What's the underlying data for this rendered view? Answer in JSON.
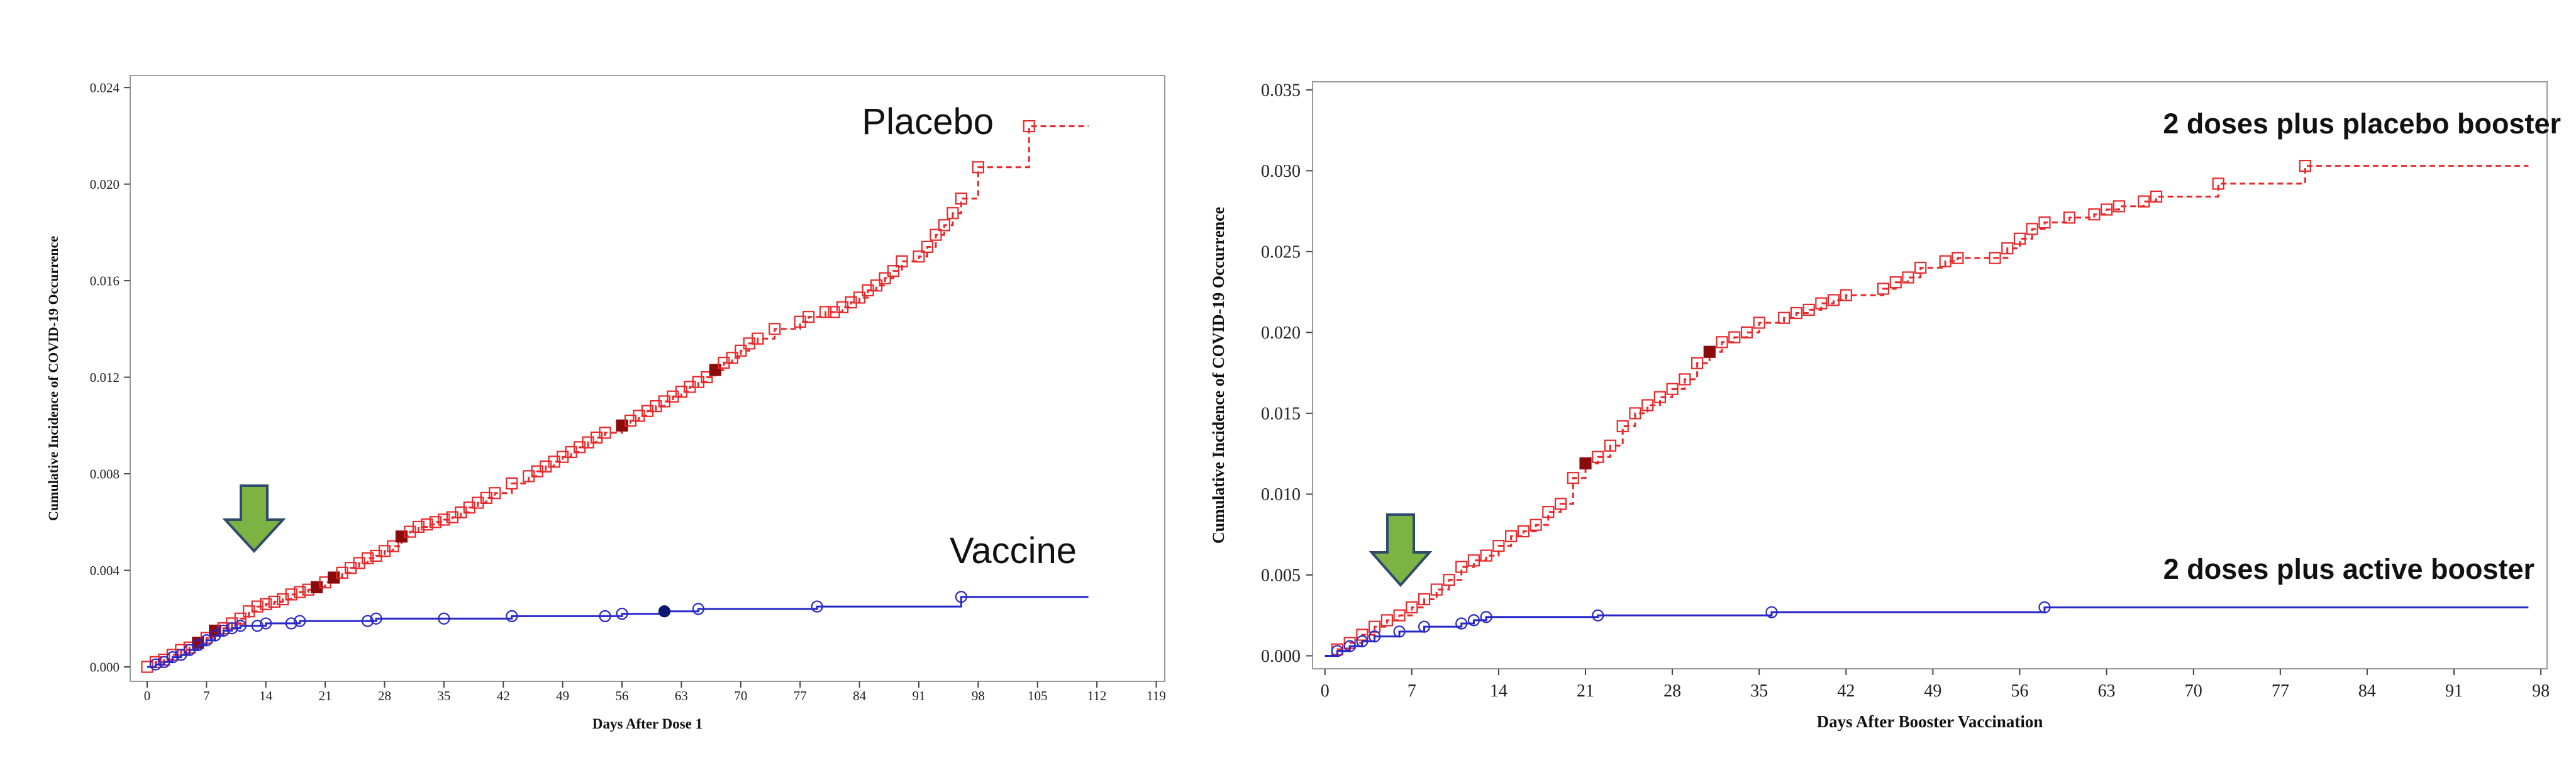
{
  "colors": {
    "placebo": "#e8292b",
    "placebo_filled": "#8b0a0a",
    "vaccine": "#2727c9",
    "vaccine_filled": "#0d1670",
    "arrow_fill": "#7cb342",
    "arrow_stroke": "#2f4a6d",
    "axis": "#444444"
  },
  "chart_data": [
    {
      "type": "line",
      "title": "",
      "xlabel": "Days After Dose 1",
      "ylabel": "Cumulative Incidence of COVID-19 Occurrence",
      "xlim": [
        -2,
        120
      ],
      "ylim": [
        -0.0006,
        0.0245
      ],
      "xticks": [
        0,
        7,
        14,
        21,
        28,
        35,
        42,
        49,
        56,
        63,
        70,
        77,
        84,
        91,
        98,
        105,
        112,
        119
      ],
      "yticks": [
        0.0,
        0.004,
        0.008,
        0.012,
        0.016,
        0.02,
        0.024
      ],
      "ytick_labels": [
        "0.000",
        "0.004",
        "0.008",
        "0.012",
        "0.016",
        "0.020",
        "0.024"
      ],
      "arrow_at_x": 13,
      "annotations": [
        "Placebo",
        "Vaccine"
      ],
      "series": [
        {
          "name": "Placebo",
          "style": "dashed",
          "marker": "square",
          "end_x": 111,
          "filled": [
            [
              6,
              0.001
            ],
            [
              8,
              0.0015
            ],
            [
              20,
              0.0033
            ],
            [
              22,
              0.0037
            ],
            [
              30,
              0.0054
            ],
            [
              56,
              0.01
            ],
            [
              67,
              0.0123
            ]
          ],
          "points": [
            [
              0,
              0.0
            ],
            [
              1,
              0.0002
            ],
            [
              2,
              0.0003
            ],
            [
              3,
              0.0005
            ],
            [
              4,
              0.0007
            ],
            [
              5,
              0.0008
            ],
            [
              6,
              0.001
            ],
            [
              7,
              0.0012
            ],
            [
              8,
              0.0015
            ],
            [
              9,
              0.0016
            ],
            [
              10,
              0.0018
            ],
            [
              11,
              0.002
            ],
            [
              12,
              0.0023
            ],
            [
              13,
              0.0025
            ],
            [
              14,
              0.0026
            ],
            [
              15,
              0.0027
            ],
            [
              16,
              0.0028
            ],
            [
              17,
              0.003
            ],
            [
              18,
              0.0031
            ],
            [
              19,
              0.0032
            ],
            [
              20,
              0.0033
            ],
            [
              21,
              0.0035
            ],
            [
              22,
              0.0037
            ],
            [
              23,
              0.0039
            ],
            [
              24,
              0.0041
            ],
            [
              25,
              0.0043
            ],
            [
              26,
              0.0045
            ],
            [
              27,
              0.0046
            ],
            [
              28,
              0.0048
            ],
            [
              29,
              0.005
            ],
            [
              30,
              0.0054
            ],
            [
              31,
              0.0056
            ],
            [
              32,
              0.0058
            ],
            [
              33,
              0.0059
            ],
            [
              34,
              0.006
            ],
            [
              35,
              0.0061
            ],
            [
              36,
              0.0062
            ],
            [
              37,
              0.0064
            ],
            [
              38,
              0.0066
            ],
            [
              39,
              0.0068
            ],
            [
              40,
              0.007
            ],
            [
              41,
              0.0072
            ],
            [
              43,
              0.0076
            ],
            [
              45,
              0.0079
            ],
            [
              46,
              0.0081
            ],
            [
              47,
              0.0083
            ],
            [
              48,
              0.0085
            ],
            [
              49,
              0.0087
            ],
            [
              50,
              0.0089
            ],
            [
              51,
              0.0091
            ],
            [
              52,
              0.0093
            ],
            [
              53,
              0.0095
            ],
            [
              54,
              0.0097
            ],
            [
              56,
              0.01
            ],
            [
              57,
              0.0102
            ],
            [
              58,
              0.0104
            ],
            [
              59,
              0.0106
            ],
            [
              60,
              0.0108
            ],
            [
              61,
              0.011
            ],
            [
              62,
              0.0112
            ],
            [
              63,
              0.0114
            ],
            [
              64,
              0.0116
            ],
            [
              65,
              0.0118
            ],
            [
              66,
              0.012
            ],
            [
              67,
              0.0123
            ],
            [
              68,
              0.0126
            ],
            [
              69,
              0.0128
            ],
            [
              70,
              0.0131
            ],
            [
              71,
              0.0134
            ],
            [
              72,
              0.0136
            ],
            [
              74,
              0.014
            ],
            [
              77,
              0.0143
            ],
            [
              78,
              0.0145
            ],
            [
              80,
              0.0147
            ],
            [
              81,
              0.0147
            ],
            [
              82,
              0.0149
            ],
            [
              83,
              0.0151
            ],
            [
              84,
              0.0153
            ],
            [
              85,
              0.0156
            ],
            [
              86,
              0.0158
            ],
            [
              87,
              0.0161
            ],
            [
              88,
              0.0164
            ],
            [
              89,
              0.0168
            ],
            [
              91,
              0.017
            ],
            [
              92,
              0.0174
            ],
            [
              93,
              0.0179
            ],
            [
              94,
              0.0183
            ],
            [
              95,
              0.0188
            ],
            [
              96,
              0.0194
            ],
            [
              98,
              0.0207
            ],
            [
              104,
              0.0224
            ]
          ]
        },
        {
          "name": "Vaccine",
          "style": "solid",
          "marker": "circle",
          "end_x": 111,
          "filled": [
            [
              61,
              0.0023
            ]
          ],
          "points": [
            [
              1,
              0.0001
            ],
            [
              2,
              0.0002
            ],
            [
              3,
              0.0004
            ],
            [
              4,
              0.0005
            ],
            [
              5,
              0.0007
            ],
            [
              6,
              0.0009
            ],
            [
              7,
              0.0011
            ],
            [
              8,
              0.0013
            ],
            [
              9,
              0.0015
            ],
            [
              10,
              0.0016
            ],
            [
              11,
              0.0017
            ],
            [
              13,
              0.0017
            ],
            [
              14,
              0.0018
            ],
            [
              17,
              0.0018
            ],
            [
              18,
              0.0019
            ],
            [
              26,
              0.0019
            ],
            [
              27,
              0.002
            ],
            [
              35,
              0.002
            ],
            [
              43,
              0.0021
            ],
            [
              54,
              0.0021
            ],
            [
              56,
              0.0022
            ],
            [
              61,
              0.0023
            ],
            [
              65,
              0.0024
            ],
            [
              79,
              0.0025
            ],
            [
              96,
              0.0029
            ]
          ]
        }
      ]
    },
    {
      "type": "line",
      "title": "",
      "xlabel": "Days After Booster Vaccination",
      "ylabel": "Cumulative Incidence of COVID-19 Occurrence",
      "xlim": [
        -1,
        98.5
      ],
      "ylim": [
        -0.0008,
        0.0355
      ],
      "xticks": [
        0,
        7,
        14,
        21,
        28,
        35,
        42,
        49,
        56,
        63,
        70,
        77,
        84,
        91,
        98
      ],
      "yticks": [
        0.0,
        0.005,
        0.01,
        0.015,
        0.02,
        0.025,
        0.03,
        0.035
      ],
      "ytick_labels": [
        "0.000",
        "0.005",
        "0.010",
        "0.015",
        "0.020",
        "0.025",
        "0.030",
        "0.035"
      ],
      "arrow_at_x": 6,
      "annotations": [
        "2 doses plus placebo booster",
        "2 doses plus active booster"
      ],
      "series": [
        {
          "name": "2 doses plus placebo booster",
          "style": "dashed",
          "marker": "square",
          "end_x": 97,
          "filled": [
            [
              21,
              0.0119
            ],
            [
              31,
              0.0188
            ]
          ],
          "points": [
            [
              1,
              0.0004
            ],
            [
              2,
              0.0008
            ],
            [
              3,
              0.0013
            ],
            [
              4,
              0.0018
            ],
            [
              5,
              0.0022
            ],
            [
              6,
              0.0025
            ],
            [
              7,
              0.003
            ],
            [
              8,
              0.0035
            ],
            [
              9,
              0.0041
            ],
            [
              10,
              0.0047
            ],
            [
              11,
              0.0055
            ],
            [
              12,
              0.0059
            ],
            [
              13,
              0.0062
            ],
            [
              14,
              0.0068
            ],
            [
              15,
              0.0074
            ],
            [
              16,
              0.0077
            ],
            [
              17,
              0.0081
            ],
            [
              18,
              0.0089
            ],
            [
              19,
              0.0094
            ],
            [
              20,
              0.011
            ],
            [
              21,
              0.0119
            ],
            [
              22,
              0.0123
            ],
            [
              23,
              0.013
            ],
            [
              24,
              0.0142
            ],
            [
              25,
              0.015
            ],
            [
              26,
              0.0155
            ],
            [
              27,
              0.016
            ],
            [
              28,
              0.0165
            ],
            [
              29,
              0.0171
            ],
            [
              30,
              0.0181
            ],
            [
              31,
              0.0188
            ],
            [
              32,
              0.0194
            ],
            [
              33,
              0.0197
            ],
            [
              34,
              0.02
            ],
            [
              35,
              0.0206
            ],
            [
              37,
              0.0209
            ],
            [
              38,
              0.0212
            ],
            [
              39,
              0.0214
            ],
            [
              40,
              0.0218
            ],
            [
              41,
              0.022
            ],
            [
              42,
              0.0223
            ],
            [
              45,
              0.0227
            ],
            [
              46,
              0.0231
            ],
            [
              47,
              0.0234
            ],
            [
              48,
              0.024
            ],
            [
              50,
              0.0244
            ],
            [
              51,
              0.0246
            ],
            [
              54,
              0.0246
            ],
            [
              55,
              0.0252
            ],
            [
              56,
              0.0258
            ],
            [
              57,
              0.0264
            ],
            [
              58,
              0.0268
            ],
            [
              60,
              0.0271
            ],
            [
              62,
              0.0273
            ],
            [
              63,
              0.0276
            ],
            [
              64,
              0.0278
            ],
            [
              66,
              0.0281
            ],
            [
              67,
              0.0284
            ],
            [
              72,
              0.0292
            ],
            [
              79,
              0.0303
            ]
          ]
        },
        {
          "name": "2 doses plus active booster",
          "style": "solid",
          "marker": "circle",
          "end_x": 97,
          "filled": [],
          "points": [
            [
              1,
              0.0003
            ],
            [
              2,
              0.0006
            ],
            [
              3,
              0.0009
            ],
            [
              4,
              0.0012
            ],
            [
              6,
              0.0015
            ],
            [
              8,
              0.0018
            ],
            [
              11,
              0.002
            ],
            [
              12,
              0.0022
            ],
            [
              13,
              0.0024
            ],
            [
              22,
              0.0025
            ],
            [
              36,
              0.0027
            ],
            [
              58,
              0.003
            ]
          ]
        }
      ]
    }
  ]
}
